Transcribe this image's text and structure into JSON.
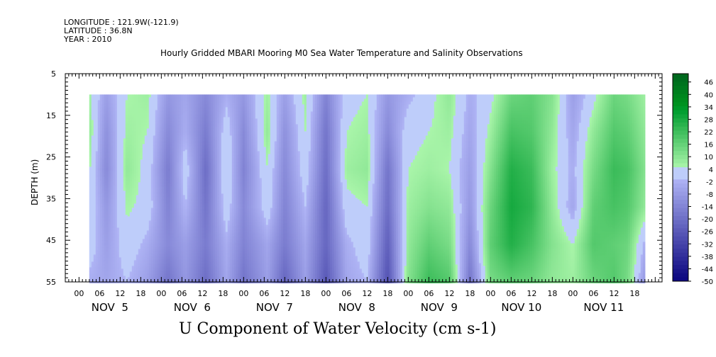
{
  "header": {
    "longitude": "LONGITUDE : 121.9W(-121.9)",
    "latitude": "LATITUDE : 36.8N",
    "year": "YEAR : 2010"
  },
  "chart_data": {
    "type": "heatmap",
    "title": "Hourly Gridded MBARI Mooring M0 Sea Water Temperature and Salinity Observations",
    "xlabel": "U Component of Water Velocity (cm s-1)",
    "ylabel": "DEPTH (m)",
    "y_ticks": [
      5,
      15,
      25,
      35,
      45,
      55
    ],
    "ylim": [
      5,
      55
    ],
    "y_inverted": true,
    "x_hour_labels": [
      "00",
      "06",
      "12",
      "18",
      "00",
      "06",
      "12",
      "18",
      "00",
      "06",
      "12",
      "18",
      "00",
      "06",
      "12",
      "18",
      "00",
      "06",
      "12",
      "18",
      "00",
      "06",
      "12",
      "18",
      "00",
      "06",
      "12",
      "18"
    ],
    "x_day_labels": [
      "NOV  5",
      "NOV  6",
      "NOV  7",
      "NOV  8",
      "NOV  9",
      "NOV 10",
      "NOV 11"
    ],
    "colorbar": {
      "labels": [
        "46",
        "40",
        "34",
        "28",
        "22",
        "16",
        "10",
        "4",
        "-2",
        "-8",
        "-14",
        "-20",
        "-26",
        "-32",
        "-38",
        "-44",
        "-50"
      ],
      "range": [
        -50,
        50
      ]
    },
    "data_depth_range": [
      10,
      55
    ],
    "data_start_hour": 3,
    "profile_hours": [
      3,
      8,
      14,
      20,
      26,
      31,
      37,
      43,
      48,
      55,
      60,
      66,
      72,
      78,
      84,
      90,
      96,
      102,
      108,
      114,
      120,
      126,
      132,
      138,
      144,
      150,
      156,
      160,
      165
    ],
    "u_velocity_profiles": [
      [
        6,
        8,
        5,
        4,
        2,
        -4
      ],
      [
        -8,
        -12,
        -14,
        -10,
        -8,
        -6
      ],
      [
        4,
        6,
        8,
        5,
        2,
        -2
      ],
      [
        6,
        4,
        2,
        2,
        -4,
        -8
      ],
      [
        -10,
        -14,
        -18,
        -16,
        -14,
        -20
      ],
      [
        -6,
        -4,
        2,
        -2,
        -8,
        -10
      ],
      [
        -14,
        -18,
        -22,
        -20,
        -18,
        -22
      ],
      [
        -4,
        2,
        4,
        2,
        -4,
        -6
      ],
      [
        -10,
        -14,
        -16,
        -14,
        -16,
        -20
      ],
      [
        6,
        8,
        4,
        2,
        -6,
        -8
      ],
      [
        -8,
        -12,
        -14,
        -16,
        -18,
        -24
      ],
      [
        6,
        4,
        2,
        -2,
        -6,
        -8
      ],
      [
        -16,
        -20,
        -22,
        -24,
        -24,
        -28
      ],
      [
        2,
        4,
        6,
        2,
        -4,
        -6
      ],
      [
        4,
        6,
        8,
        4,
        2,
        -2
      ],
      [
        -10,
        -14,
        -20,
        -22,
        -26,
        -30
      ],
      [
        -4,
        2,
        4,
        6,
        8,
        10
      ],
      [
        2,
        4,
        6,
        10,
        16,
        22
      ],
      [
        8,
        6,
        4,
        8,
        12,
        18
      ],
      [
        -4,
        -6,
        -8,
        -10,
        -14,
        -20
      ],
      [
        2,
        6,
        10,
        14,
        16,
        12
      ],
      [
        14,
        20,
        26,
        28,
        26,
        16
      ],
      [
        16,
        18,
        22,
        24,
        20,
        14
      ],
      [
        10,
        8,
        6,
        8,
        10,
        8
      ],
      [
        -8,
        -6,
        -4,
        -6,
        4,
        6
      ],
      [
        2,
        8,
        12,
        16,
        18,
        14
      ],
      [
        14,
        18,
        22,
        20,
        16,
        18
      ],
      [
        12,
        16,
        20,
        18,
        14,
        12
      ],
      [
        6,
        8,
        10,
        8,
        -4,
        -10
      ]
    ]
  }
}
